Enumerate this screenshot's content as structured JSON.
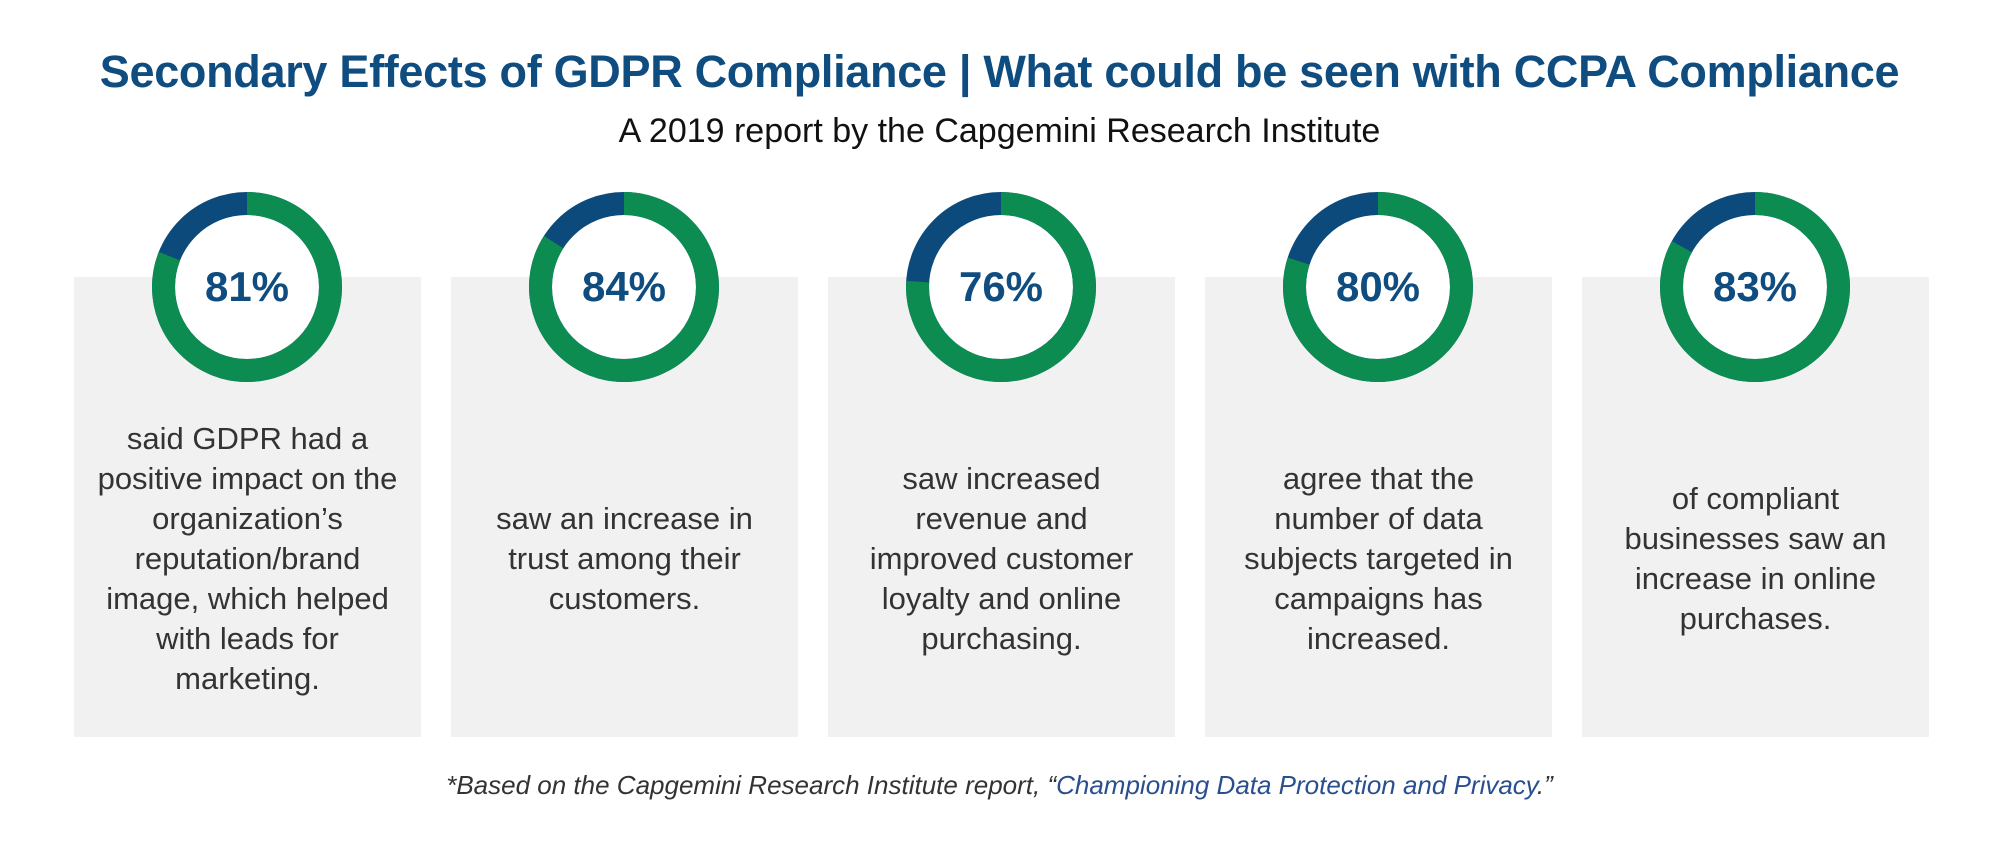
{
  "title": "Secondary Effects of GDPR Compliance | What could be seen with CCPA Compliance",
  "subtitle": "A 2019 report by the Capgemini Research Institute",
  "colors": {
    "green": "#0c8c50",
    "blue": "#0b4a7a",
    "card": "#f1f1f1",
    "title": "#0f4c7f"
  },
  "chart_data": {
    "type": "pie",
    "variant": "donut",
    "items": [
      {
        "value": 81,
        "label": "81%",
        "text": "said GDPR had a positive impact on the organization’s reputation/brand image, which helped with leads for marketing."
      },
      {
        "value": 84,
        "label": "84%",
        "text": "saw an increase in trust among their customers."
      },
      {
        "value": 76,
        "label": "76%",
        "text": "saw increased revenue and improved customer loyalty and online purchasing."
      },
      {
        "value": 80,
        "label": "80%",
        "text": "agree that the number of data subjects targeted in campaigns has increased."
      },
      {
        "value": 83,
        "label": "83%",
        "text": "of compliant businesses saw an increase in online purchases."
      }
    ]
  },
  "footer": {
    "prefix": "*Based on the Capgemini Research Institute report, “",
    "link": "Championing Data Protection and Privacy",
    "suffix": ".”"
  }
}
